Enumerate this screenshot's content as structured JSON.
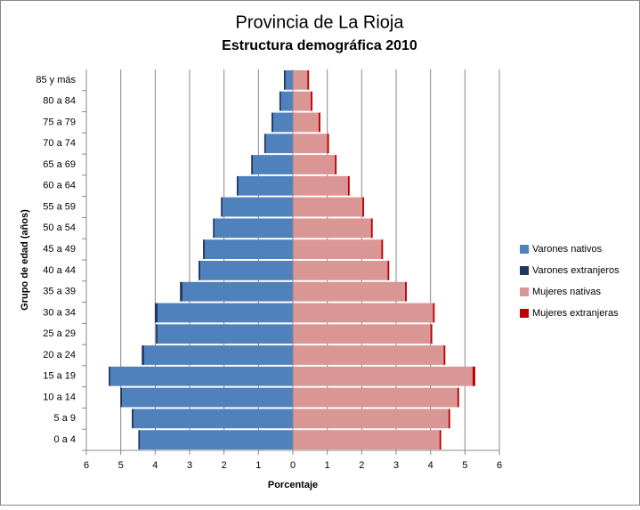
{
  "chart_data": {
    "type": "bar",
    "orientation": "horizontal",
    "stacked": true,
    "title": "Provincia de La Rioja",
    "subtitle": "Estructura demográfica 2010",
    "x_label": "Porcentaje",
    "y_label": "Grupo de edad (años)",
    "categories": [
      "0 a 4",
      "5 a 9",
      "10 a 14",
      "15 a 19",
      "20 a 24",
      "25 a 29",
      "30 a 34",
      "35 a 39",
      "40 a 44",
      "45 a 49",
      "50 a 54",
      "55 a 59",
      "60 a 64",
      "65 a 69",
      "70 a 74",
      "75 a 79",
      "80 a 84",
      "85 y más"
    ],
    "series": [
      {
        "name": "Varones nativos",
        "color": "#4f81bd",
        "values": [
          -4.44,
          -4.63,
          -4.96,
          -5.3,
          -4.32,
          -3.93,
          -3.93,
          -3.2,
          -2.69,
          -2.56,
          -2.27,
          -2.04,
          -1.58,
          -1.16,
          -0.78,
          -0.57,
          -0.34,
          -0.21
        ]
      },
      {
        "name": "Varones extranjeros",
        "color": "#1f3864",
        "values": [
          -0.05,
          -0.05,
          -0.05,
          -0.05,
          -0.07,
          -0.05,
          -0.08,
          -0.08,
          -0.05,
          -0.05,
          -0.05,
          -0.05,
          -0.05,
          -0.05,
          -0.05,
          -0.05,
          -0.05,
          -0.05
        ]
      },
      {
        "name": "Mujeres nativas",
        "color": "#d99694",
        "values": [
          4.26,
          4.52,
          4.78,
          5.22,
          4.38,
          4.0,
          4.07,
          3.26,
          2.75,
          2.57,
          2.27,
          2.02,
          1.6,
          1.22,
          1.0,
          0.75,
          0.52,
          0.42
        ]
      },
      {
        "name": "Mujeres extranjeras",
        "color": "#c00000",
        "values": [
          0.05,
          0.05,
          0.05,
          0.08,
          0.05,
          0.05,
          0.05,
          0.05,
          0.05,
          0.05,
          0.05,
          0.05,
          0.05,
          0.05,
          0.05,
          0.05,
          0.05,
          0.05
        ]
      }
    ],
    "xlim": [
      -6,
      6
    ],
    "xticks": [
      {
        "value": -6,
        "label": "6"
      },
      {
        "value": -5,
        "label": "5"
      },
      {
        "value": -4,
        "label": "4"
      },
      {
        "value": -3,
        "label": "3"
      },
      {
        "value": -2,
        "label": "2"
      },
      {
        "value": -1,
        "label": "1"
      },
      0,
      1,
      2,
      3,
      4,
      5,
      6
    ],
    "grid": true,
    "legend": "right"
  }
}
